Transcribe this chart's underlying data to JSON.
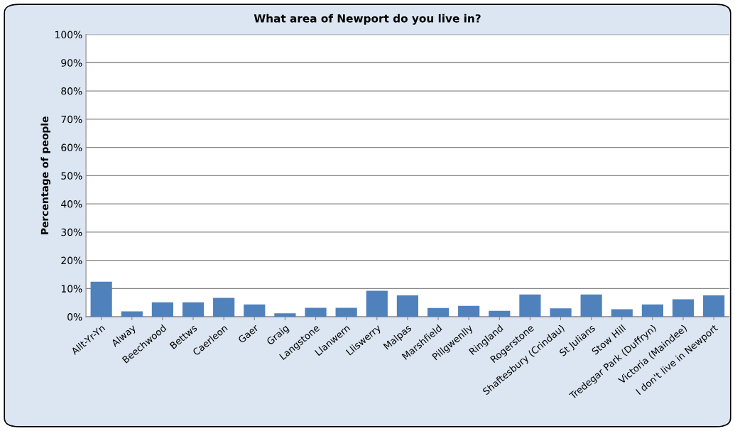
{
  "chart_data": {
    "type": "bar",
    "title": "What area of Newport do you live in?",
    "ylabel": "Percentage of people",
    "categories": [
      "Allt-Yr-Yn",
      "Alway",
      "Beechwood",
      "Bettws",
      "Caerleon",
      "Gaer",
      "Graig",
      "Langstone",
      "Llanwern",
      "Lliswerry",
      "Malpas",
      "Marshfield",
      "Pillgwenlly",
      "Ringland",
      "Rogerstone",
      "Shaftesbury (Crindau)",
      "St Julians",
      "Stow Hill",
      "Tredegar Park (Duffryn)",
      "Victoria (Maindee)",
      "I don't live in Newport"
    ],
    "values": [
      12.4,
      1.9,
      5.1,
      5.1,
      6.7,
      4.4,
      1.2,
      3.2,
      3.2,
      9.2,
      7.6,
      3.1,
      3.9,
      2.1,
      7.9,
      3.0,
      7.9,
      2.7,
      4.4,
      6.2,
      7.6
    ],
    "color": "#4f81bd",
    "ylim": [
      0,
      100
    ],
    "yticks": [
      {
        "value": 0,
        "label": "0%"
      },
      {
        "value": 10,
        "label": "10%"
      },
      {
        "value": 20,
        "label": "20%"
      },
      {
        "value": 30,
        "label": "30%"
      },
      {
        "value": 40,
        "label": "40%"
      },
      {
        "value": 50,
        "label": "50%"
      },
      {
        "value": 60,
        "label": "60%"
      },
      {
        "value": 70,
        "label": "70%"
      },
      {
        "value": 80,
        "label": "80%"
      },
      {
        "value": 90,
        "label": "90%"
      },
      {
        "value": 100,
        "label": "100%"
      }
    ],
    "grid": "y",
    "legend": false
  }
}
